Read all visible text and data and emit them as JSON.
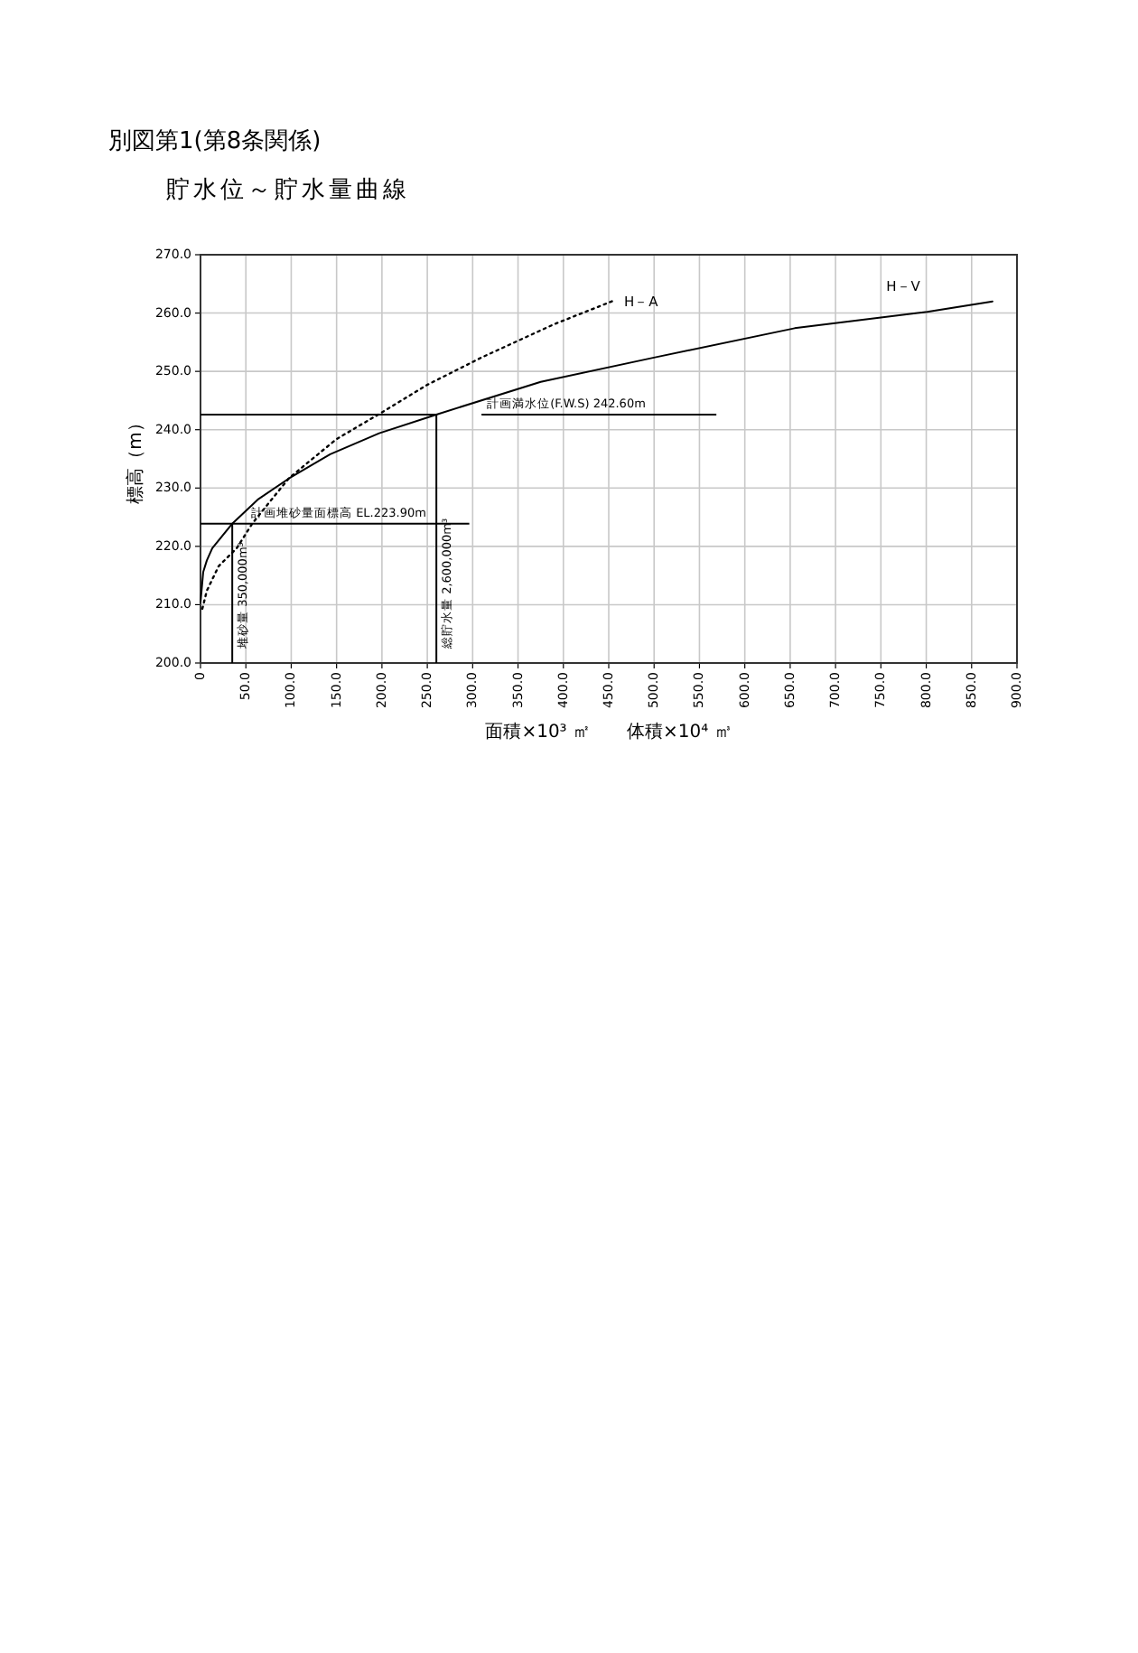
{
  "chart_data": {
    "type": "line",
    "title": "貯水位～貯水量曲線",
    "xlabel": "面積×10³ ㎡　　体積×10⁴ ㎥",
    "ylabel": "標高（m）",
    "annotations": [
      "別図第1(第8条関係)"
    ],
    "series": [
      {
        "name": "H－A",
        "color": "#000000",
        "line_style": "dotted",
        "x": [
          2,
          7,
          20,
          40,
          57,
          73,
          97,
          117,
          150,
          197,
          250,
          310,
          390,
          455
        ],
        "values": [
          209.3,
          212.4,
          216.6,
          219.7,
          223.9,
          227,
          231.6,
          234.2,
          238.4,
          242.7,
          247.7,
          252.4,
          258.1,
          262.1
        ]
      },
      {
        "name": "H－V",
        "color": "#000000",
        "line_style": "solid",
        "x": [
          0,
          3,
          7,
          13,
          35,
          63,
          97,
          143,
          197,
          260,
          375,
          501,
          655,
          801,
          873
        ],
        "values": [
          210.4,
          215.6,
          217.6,
          219.7,
          223.9,
          228,
          231.6,
          235.8,
          239.4,
          242.6,
          248.2,
          252.4,
          257.4,
          260.2,
          262
        ]
      }
    ],
    "xlim": [
      0,
      900
    ],
    "ylim": [
      200,
      270
    ],
    "xticks": [
      0,
      {
        "value": 50,
        "label": "50.0"
      },
      {
        "value": 100,
        "label": "100.0"
      },
      {
        "value": 150,
        "label": "150.0"
      },
      {
        "value": 200,
        "label": "200.0"
      },
      {
        "value": 250,
        "label": "250.0"
      },
      {
        "value": 300,
        "label": "300.0"
      },
      {
        "value": 350,
        "label": "350.0"
      },
      {
        "value": 400,
        "label": "400.0"
      },
      {
        "value": 450,
        "label": "450.0"
      },
      {
        "value": 500,
        "label": "500.0"
      },
      {
        "value": 550,
        "label": "550.0"
      },
      {
        "value": 600,
        "label": "600.0"
      },
      {
        "value": 650,
        "label": "650.0"
      },
      {
        "value": 700,
        "label": "700.0"
      },
      {
        "value": 750,
        "label": "750.0"
      },
      {
        "value": 800,
        "label": "800.0"
      },
      {
        "value": 850,
        "label": "850.0"
      },
      {
        "value": 900,
        "label": "900.0"
      }
    ],
    "yticks": [
      {
        "value": 200,
        "label": "200.0"
      },
      {
        "value": 210,
        "label": "210.0"
      },
      {
        "value": 220,
        "label": "220.0"
      },
      {
        "value": 230,
        "label": "230.0"
      },
      {
        "value": 240,
        "label": "240.0"
      },
      {
        "value": 250,
        "label": "250.0"
      },
      {
        "value": 260,
        "label": "260.0"
      },
      {
        "value": 270,
        "label": "270.0"
      }
    ],
    "grid": true,
    "marker": "none",
    "ref_lines": [
      {
        "axis": "y",
        "value": 242.6,
        "label": "計画満水位(F.W.S) 242.60m"
      },
      {
        "axis": "y",
        "value": 223.9,
        "label": "計画堆砂量面標高 EL.223.90m"
      },
      {
        "axis": "x",
        "value": 35,
        "label": "堆砂量 350,000m³"
      },
      {
        "axis": "x",
        "value": 260,
        "label": "総貯水量 2,600,000m³"
      }
    ]
  }
}
